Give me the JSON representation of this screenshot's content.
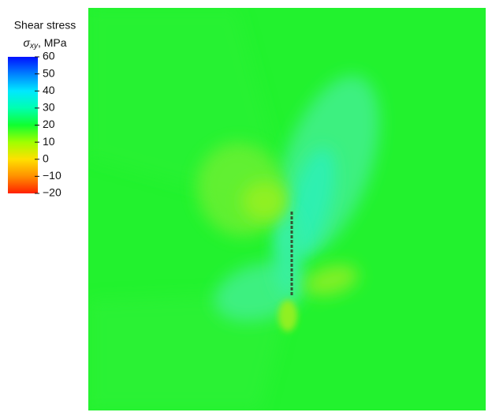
{
  "chart_data": {
    "type": "contour",
    "title": "Shear stress",
    "colorbar_label": {
      "symbol": "σ",
      "subscript": "xy",
      "unit": ", MPa"
    },
    "clim": [
      -20,
      60
    ],
    "cticks": [
      60,
      50,
      40,
      30,
      20,
      10,
      0,
      {
        "value": -10,
        "label": "−10"
      },
      {
        "value": -20,
        "label": "−20"
      }
    ],
    "colors": [
      "#0010ff",
      "#0080ff",
      "#00e8ff",
      "#00ffb0",
      "#10ff30",
      "#a0ff00",
      "#ffe000",
      "#ff9000",
      "#ff2000"
    ]
  }
}
